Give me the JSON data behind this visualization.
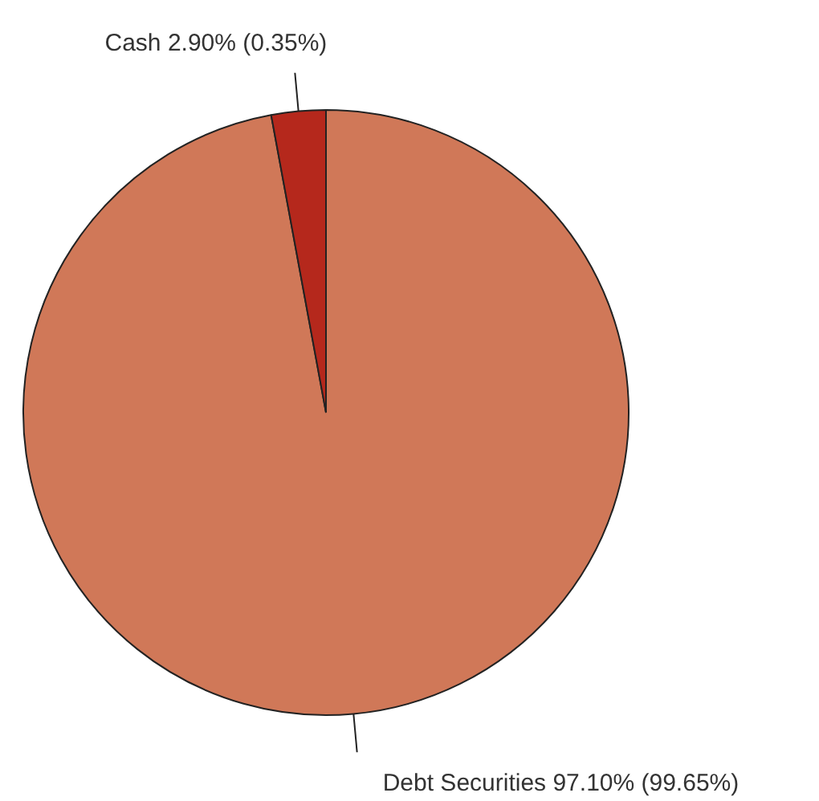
{
  "chart_data": {
    "type": "pie",
    "categories": [
      "Debt Securities",
      "Cash"
    ],
    "values": [
      97.1,
      2.9
    ],
    "value_labels": [
      "97.10% (99.65%)",
      "2.90% (0.35%)"
    ],
    "colors": [
      "#d07858",
      "#b5281c"
    ]
  }
}
